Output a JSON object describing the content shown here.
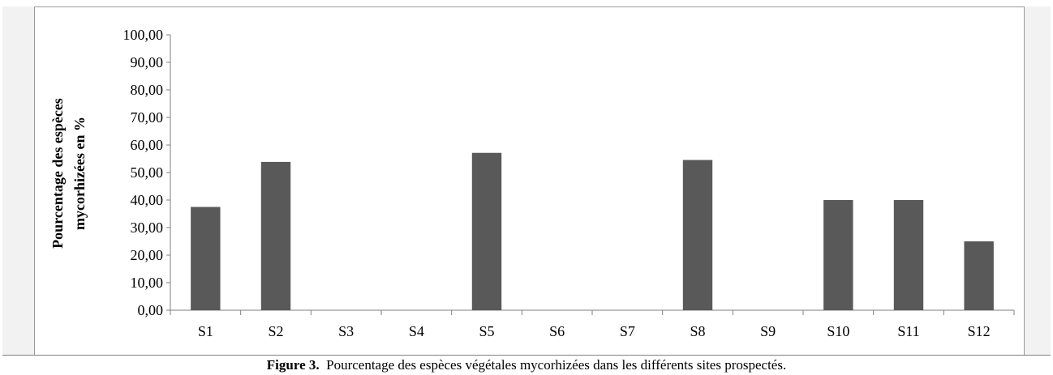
{
  "chart_data": {
    "type": "bar",
    "categories": [
      "S1",
      "S2",
      "S3",
      "S4",
      "S5",
      "S6",
      "S7",
      "S8",
      "S9",
      "S10",
      "S11",
      "S12"
    ],
    "values": [
      37.5,
      53.85,
      0,
      0,
      57.14,
      0,
      0,
      54.55,
      0,
      40.0,
      40.0,
      25.0
    ],
    "ylabel_line1": "Pourcentage des espèces",
    "ylabel_line2": "mycorhizées en %",
    "ylim": [
      0,
      100
    ],
    "yticks": [
      "0,00",
      "10,00",
      "20,00",
      "30,00",
      "40,00",
      "50,00",
      "60,00",
      "70,00",
      "80,00",
      "90,00",
      "100,00"
    ],
    "grid": false,
    "bar_color": "#595959"
  },
  "caption": {
    "label": "Figure 3.",
    "text": "Pourcentage des espèces végétales mycorhizées dans les différents sites prospectés."
  }
}
